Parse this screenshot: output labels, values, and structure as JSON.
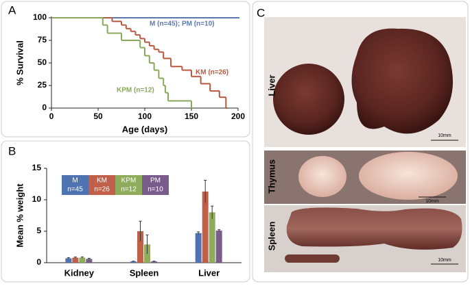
{
  "panel_labels": [
    "A",
    "B",
    "C"
  ],
  "chart_data": [
    {
      "type": "step",
      "xlabel": "Age (days)",
      "ylabel": "% Survival",
      "xlim": [
        0,
        200
      ],
      "xticks": [
        0,
        50,
        100,
        150,
        200
      ],
      "ylim": [
        0,
        100
      ],
      "yticks": [
        0,
        25,
        50,
        75,
        100
      ],
      "series": [
        {
          "name": "M (n=45); PM (n=10)",
          "color": "#5a78b0",
          "x": [
            0,
            200
          ],
          "values": [
            100,
            100
          ]
        },
        {
          "name": "KM (n=26)",
          "color": "#b8583f",
          "x": [
            0,
            65,
            75,
            80,
            85,
            90,
            95,
            100,
            105,
            110,
            115,
            120,
            128,
            140,
            150,
            160,
            170,
            180,
            187
          ],
          "values": [
            100,
            96,
            92,
            88,
            85,
            81,
            77,
            73,
            69,
            65,
            62,
            55,
            46,
            42,
            35,
            27,
            19,
            12,
            0
          ]
        },
        {
          "name": "KPM (n=12)",
          "color": "#8aa85a",
          "x": [
            0,
            55,
            60,
            75,
            95,
            100,
            105,
            110,
            115,
            120,
            122,
            125,
            150
          ],
          "values": [
            100,
            92,
            83,
            75,
            67,
            58,
            50,
            42,
            33,
            25,
            17,
            8,
            0
          ]
        }
      ]
    },
    {
      "type": "bar",
      "ylabel": "Mean % weight",
      "categories": [
        "Kidney",
        "Spleen",
        "Liver"
      ],
      "ylim": [
        0,
        15
      ],
      "yticks": [
        0,
        5,
        10,
        15
      ],
      "series": [
        {
          "name": "M",
          "n_label": "n=45",
          "color": "#4f73b0",
          "values": [
            0.7,
            0.2,
            4.7
          ],
          "errors": [
            0.1,
            0.05,
            0.2
          ]
        },
        {
          "name": "KM",
          "n_label": "n=26",
          "color": "#c0604a",
          "values": [
            0.8,
            5.0,
            11.3
          ],
          "errors": [
            0.1,
            1.6,
            1.8
          ]
        },
        {
          "name": "KPM",
          "n_label": "n=12",
          "color": "#8fac5c",
          "values": [
            0.8,
            2.9,
            8.0
          ],
          "errors": [
            0.1,
            1.5,
            1.0
          ]
        },
        {
          "name": "PM",
          "n_label": "n=10",
          "color": "#7a5c8c",
          "values": [
            0.6,
            0.2,
            5.1
          ],
          "errors": [
            0.1,
            0.05,
            0.15
          ]
        }
      ]
    }
  ],
  "photos": [
    {
      "label": "Liver",
      "scale": "10mm"
    },
    {
      "label": "Thymus",
      "scale": "10mm"
    },
    {
      "label": "Spleen",
      "scale": "10mm"
    }
  ]
}
